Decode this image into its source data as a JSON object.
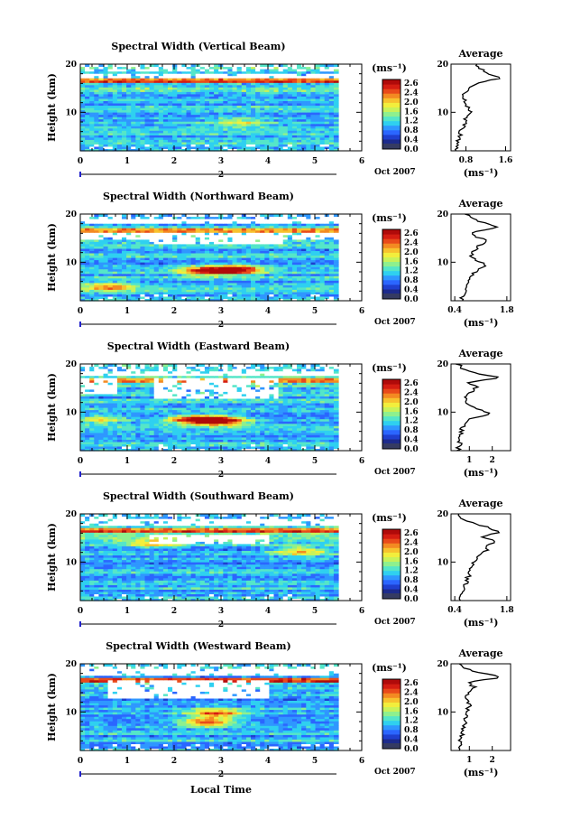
{
  "figure": {
    "xlabel": "Local Time",
    "ylabel": "Height (km)",
    "date_label": "Oct 2007",
    "cbar_unit": "(ms⁻¹)",
    "avg_title": "Average",
    "avg_xlabel": "(ms⁻¹)",
    "day_label": "2"
  },
  "colors": {
    "cmap": [
      "#1c2a8c",
      "#1f3fcf",
      "#2b66ff",
      "#2f97ff",
      "#2fd0f0",
      "#55e6c8",
      "#8ef08e",
      "#c8f25a",
      "#f2ee3c",
      "#f7c22e",
      "#f38a22",
      "#e94a1a",
      "#d51d12",
      "#b00a0a"
    ],
    "low": "#353b62"
  },
  "chart_data": [
    {
      "type": "heatmap",
      "title": "Spectral Width (Vertical Beam)",
      "x_ticks": [
        "0",
        "1",
        "2",
        "3",
        "4",
        "5",
        "6"
      ],
      "y_ticks": [
        "20",
        "10"
      ],
      "xlim": [
        0,
        6
      ],
      "ylim": [
        2,
        20
      ],
      "data_end_x": 5.5,
      "colorbar_ticks": [
        "2.6",
        "2.4",
        "2.0",
        "1.6",
        "1.2",
        "0.8",
        "0.4",
        "0.0"
      ],
      "clim": [
        0,
        2.8
      ],
      "gaps": [
        [
          17.3,
          18.3,
          0,
          5.5
        ]
      ],
      "hotspots": [
        [
          3.4,
          8.0,
          0.8
        ]
      ],
      "average": {
        "x_ticks": [
          "0.8",
          "1.6"
        ],
        "xlim": [
          0.5,
          1.7
        ],
        "values": [
          0.6,
          0.62,
          0.65,
          0.66,
          0.7,
          0.72,
          0.78,
          0.8,
          0.9,
          0.85,
          0.82,
          0.78,
          0.75,
          0.78,
          0.88,
          1.05,
          1.55,
          1.2,
          1.1,
          1.0
        ]
      }
    },
    {
      "type": "heatmap",
      "title": "Spectral Width (Northward Beam)",
      "x_ticks": [
        "0",
        "1",
        "2",
        "3",
        "4",
        "5",
        "6"
      ],
      "y_ticks": [
        "20",
        "10"
      ],
      "xlim": [
        0,
        6
      ],
      "ylim": [
        2,
        20
      ],
      "data_end_x": 5.5,
      "colorbar_ticks": [
        "2.6",
        "2.4",
        "2.0",
        "1.6",
        "1.2",
        "0.8",
        "0.4",
        "0.0"
      ],
      "clim": [
        0,
        2.8
      ],
      "gaps": [
        [
          17.9,
          19.0,
          0,
          5.5
        ],
        [
          15.0,
          16.3,
          0,
          5.5
        ],
        [
          14.0,
          15.0,
          1.5,
          4.3
        ]
      ],
      "hotspots": [
        [
          3.3,
          8.5,
          2.2
        ],
        [
          2.6,
          8.3,
          1.5
        ],
        [
          0.6,
          5.0,
          1.2
        ]
      ],
      "average": {
        "x_ticks": [
          "0.4",
          "1.8"
        ],
        "xlim": [
          0.3,
          1.9
        ],
        "values": [
          0.55,
          0.6,
          0.68,
          0.72,
          0.78,
          0.82,
          0.92,
          1.1,
          1.25,
          0.95,
          0.85,
          0.9,
          1.05,
          1.3,
          1.0,
          0.8,
          1.6,
          1.2,
          0.9,
          0.7
        ]
      }
    },
    {
      "type": "heatmap",
      "title": "Spectral Width (Eastward Beam)",
      "x_ticks": [
        "0",
        "1",
        "2",
        "3",
        "4",
        "5",
        "6"
      ],
      "y_ticks": [
        "20",
        "10"
      ],
      "xlim": [
        0,
        6
      ],
      "ylim": [
        2,
        20
      ],
      "data_end_x": 5.5,
      "colorbar_ticks": [
        "2.6",
        "2.4",
        "2.0",
        "1.6",
        "1.2",
        "0.8",
        "0.4",
        "0.0"
      ],
      "clim": [
        0,
        2.8
      ],
      "gaps": [
        [
          17.4,
          18.7,
          0,
          5.5
        ],
        [
          13.0,
          17.2,
          1.6,
          4.2
        ],
        [
          14.0,
          17.2,
          0.0,
          0.8
        ]
      ],
      "hotspots": [
        [
          3.0,
          8.3,
          2.3
        ],
        [
          2.4,
          8.6,
          1.8
        ],
        [
          0.4,
          8.6,
          1.0
        ]
      ],
      "average": {
        "x_ticks": [
          "1",
          "2"
        ],
        "xlim": [
          0.2,
          2.8
        ],
        "values": [
          0.5,
          0.55,
          0.6,
          0.62,
          0.65,
          0.7,
          0.8,
          1.0,
          2.0,
          1.4,
          0.9,
          0.8,
          0.85,
          1.1,
          1.3,
          0.9,
          2.4,
          1.3,
          0.7,
          0.5
        ]
      }
    },
    {
      "type": "heatmap",
      "title": "Spectral Width (Southward Beam)",
      "x_ticks": [
        "0",
        "1",
        "2",
        "3",
        "4",
        "5",
        "6"
      ],
      "y_ticks": [
        "20",
        "10"
      ],
      "xlim": [
        0,
        6
      ],
      "ylim": [
        2,
        20
      ],
      "data_end_x": 5.5,
      "colorbar_ticks": [
        "2.6",
        "2.4",
        "2.0",
        "1.6",
        "1.2",
        "0.8",
        "0.4",
        "0.0"
      ],
      "clim": [
        0,
        2.8
      ],
      "gaps": [
        [
          17.5,
          19.0,
          0,
          5.5
        ],
        [
          14.0,
          15.6,
          1.5,
          4.0
        ]
      ],
      "hotspots": [
        [
          4.7,
          12.3,
          1.2
        ],
        [
          1.5,
          14.0,
          0.9
        ]
      ],
      "average": {
        "x_ticks": [
          "0.4",
          "1.8"
        ],
        "xlim": [
          0.3,
          1.9
        ],
        "values": [
          0.5,
          0.55,
          0.6,
          0.65,
          0.7,
          0.75,
          0.8,
          0.85,
          0.9,
          1.0,
          1.1,
          1.25,
          1.2,
          1.5,
          1.1,
          1.6,
          1.3,
          0.9,
          0.6,
          0.5
        ]
      }
    },
    {
      "type": "heatmap",
      "title": "Spectral Width (Westward Beam)",
      "x_ticks": [
        "0",
        "1",
        "2",
        "3",
        "4",
        "5",
        "6"
      ],
      "y_ticks": [
        "20",
        "10"
      ],
      "xlim": [
        0,
        6
      ],
      "ylim": [
        2,
        20
      ],
      "data_end_x": 5.5,
      "colorbar_ticks": [
        "2.6",
        "2.4",
        "2.0",
        "1.6",
        "1.2",
        "0.8",
        "0.4",
        "0.0"
      ],
      "clim": [
        0,
        2.8
      ],
      "gaps": [
        [
          17.5,
          19.0,
          0,
          5.5
        ],
        [
          13.0,
          16.8,
          0.6,
          4.0
        ]
      ],
      "hotspots": [
        [
          2.9,
          9.8,
          1.6
        ],
        [
          2.7,
          8.0,
          1.6
        ]
      ],
      "average": {
        "x_ticks": [
          "1",
          "2"
        ],
        "xlim": [
          0.2,
          2.8
        ],
        "values": [
          0.55,
          0.6,
          0.62,
          0.65,
          0.7,
          0.75,
          0.8,
          0.85,
          0.9,
          0.95,
          1.0,
          0.9,
          0.85,
          1.0,
          1.2,
          0.9,
          2.5,
          1.5,
          0.8,
          0.5
        ]
      }
    }
  ]
}
